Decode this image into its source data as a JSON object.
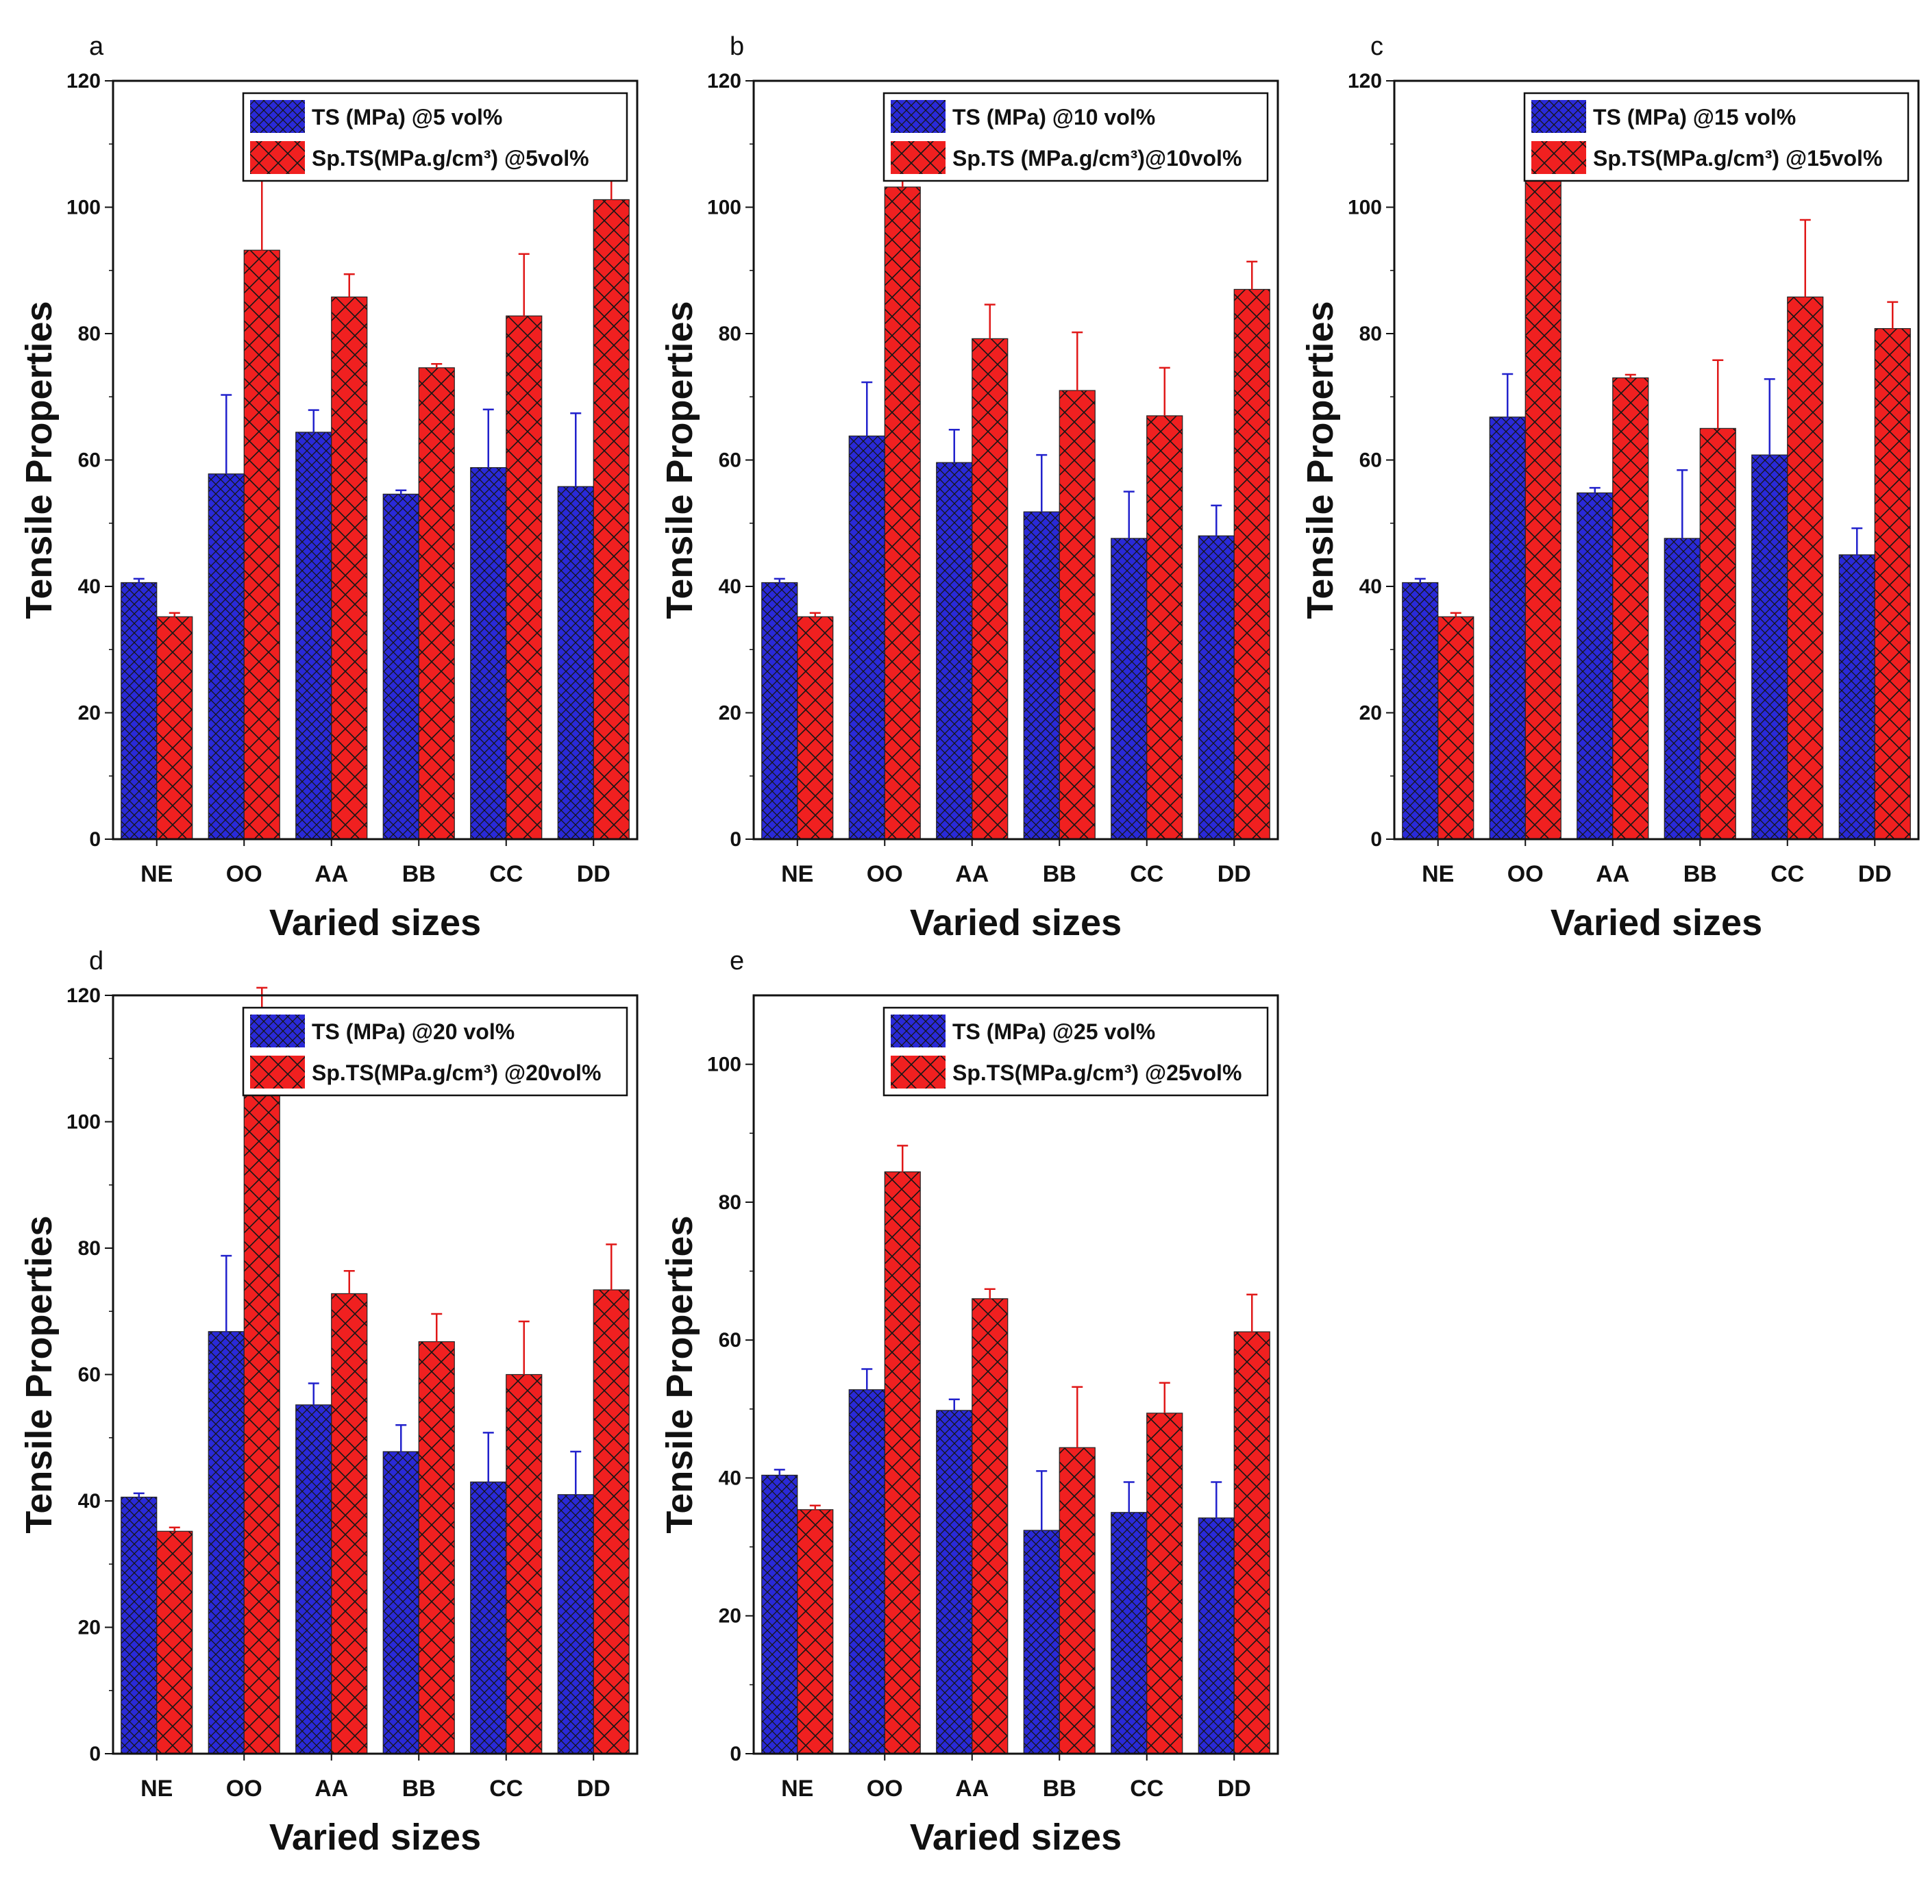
{
  "colors": {
    "ts": "#2a2ad8",
    "sp": "#f02020",
    "ts_err": "#2222cc",
    "sp_err": "#e01818",
    "hatch": "#151515"
  },
  "chart_data": [
    {
      "type": "bar",
      "panel": "a",
      "categories": [
        "NE",
        "OO",
        "AA",
        "BB",
        "CC",
        "DD"
      ],
      "series": [
        {
          "name": "TS (MPa) @5 vol%",
          "values": [
            40.6,
            57.8,
            64.4,
            54.6,
            58.8,
            55.8
          ],
          "errors": [
            0.6,
            12.5,
            3.5,
            0.6,
            9.2,
            11.6
          ]
        },
        {
          "name": "Sp.TS(MPa.g/cm³) @5vol%",
          "values": [
            35.2,
            93.2,
            85.8,
            74.6,
            82.8,
            101.2
          ],
          "errors": [
            0.6,
            14.0,
            3.6,
            0.6,
            9.8,
            11.2
          ]
        }
      ],
      "xlabel": "Varied sizes",
      "ylabel": "Tensile Properties",
      "ylim": [
        0,
        120
      ],
      "yticks": [
        "0",
        "20",
        "40",
        "60",
        "80",
        "100",
        "120"
      ],
      "legend": "top-right"
    },
    {
      "type": "bar",
      "panel": "b",
      "categories": [
        "NE",
        "OO",
        "AA",
        "BB",
        "CC",
        "DD"
      ],
      "series": [
        {
          "name": "TS (MPa) @10 vol%",
          "values": [
            40.6,
            63.8,
            59.6,
            51.8,
            47.6,
            48.0
          ],
          "errors": [
            0.6,
            8.5,
            5.2,
            9.0,
            7.4,
            4.8
          ]
        },
        {
          "name": "Sp.TS (MPa.g/cm³)@10vol%",
          "values": [
            35.2,
            103.2,
            79.2,
            71.0,
            67.0,
            87.0
          ],
          "errors": [
            0.6,
            7.0,
            5.4,
            9.2,
            7.6,
            4.4
          ]
        }
      ],
      "xlabel": "Varied sizes",
      "ylabel": "Tensile Properties",
      "ylim": [
        0,
        120
      ],
      "yticks": [
        "0",
        "20",
        "40",
        "60",
        "80",
        "100",
        "120"
      ],
      "legend": "top-right"
    },
    {
      "type": "bar",
      "panel": "c",
      "categories": [
        "NE",
        "OO",
        "AA",
        "BB",
        "CC",
        "DD"
      ],
      "series": [
        {
          "name": "TS (MPa) @15 vol%",
          "values": [
            40.6,
            66.8,
            54.8,
            47.6,
            60.8,
            45.0
          ],
          "errors": [
            0.6,
            6.8,
            0.8,
            10.8,
            12.0,
            4.2
          ]
        },
        {
          "name": "Sp.TS(MPa.g/cm³) @15vol%",
          "values": [
            35.2,
            107.0,
            73.0,
            65.0,
            85.8,
            80.8
          ],
          "errors": [
            0.6,
            7.5,
            0.5,
            10.8,
            12.2,
            4.2
          ]
        }
      ],
      "xlabel": "Varied sizes",
      "ylabel": "Tensile Properties",
      "ylim": [
        0,
        120
      ],
      "yticks": [
        "0",
        "20",
        "40",
        "60",
        "80",
        "100",
        "120"
      ],
      "legend": "top-right"
    },
    {
      "type": "bar",
      "panel": "d",
      "categories": [
        "NE",
        "OO",
        "AA",
        "BB",
        "CC",
        "DD"
      ],
      "series": [
        {
          "name": "TS (MPa) @20 vol%",
          "values": [
            40.6,
            66.8,
            55.2,
            47.8,
            43.0,
            41.0
          ],
          "errors": [
            0.6,
            12.0,
            3.4,
            4.2,
            7.8,
            6.8
          ]
        },
        {
          "name": "Sp.TS(MPa.g/cm³) @20vol%",
          "values": [
            35.2,
            107.2,
            72.8,
            65.2,
            60.0,
            73.4
          ],
          "errors": [
            0.6,
            14.0,
            3.6,
            4.4,
            8.4,
            7.2
          ]
        }
      ],
      "xlabel": "Varied sizes",
      "ylabel": "Tensile Properties",
      "ylim": [
        0,
        120
      ],
      "yticks": [
        "0",
        "20",
        "40",
        "60",
        "80",
        "100",
        "120"
      ],
      "legend": "top-right"
    },
    {
      "type": "bar",
      "panel": "e",
      "categories": [
        "NE",
        "OO",
        "AA",
        "BB",
        "CC",
        "DD"
      ],
      "series": [
        {
          "name": "TS (MPa) @25 vol%",
          "values": [
            40.4,
            52.8,
            49.8,
            32.4,
            35.0,
            34.2
          ],
          "errors": [
            0.8,
            3.0,
            1.6,
            8.6,
            4.4,
            5.2
          ]
        },
        {
          "name": "Sp.TS(MPa.g/cm³) @25vol%",
          "values": [
            35.4,
            84.4,
            66.0,
            44.4,
            49.4,
            61.2
          ],
          "errors": [
            0.6,
            3.8,
            1.4,
            8.8,
            4.4,
            5.4
          ]
        }
      ],
      "xlabel": "Varied sizes",
      "ylabel": "Tensile Properties",
      "ylim": [
        0,
        110
      ],
      "yticks": [
        "0",
        "20",
        "40",
        "60",
        "80",
        "100"
      ],
      "legend": "top-right"
    }
  ]
}
